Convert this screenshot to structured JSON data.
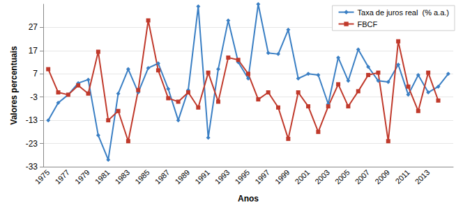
{
  "chart_data": {
    "type": "line",
    "x_label": "Anos",
    "y_label": "Valores percentuais",
    "categories": [
      "1975",
      null,
      "1977",
      null,
      "1979",
      null,
      "1981",
      null,
      "1983",
      null,
      "1985",
      null,
      "1987",
      null,
      "1989",
      null,
      "1991",
      null,
      "1993",
      null,
      "1995",
      null,
      "1997",
      null,
      "1999",
      null,
      "2001",
      null,
      "2003",
      null,
      "2005",
      null,
      "2007",
      null,
      "2009",
      null,
      "2011",
      null,
      "2013",
      null,
      null
    ],
    "series": [
      {
        "name": "Taxa de juros real  (% a.a.)",
        "color": "#3a7fc4",
        "marker": "diamond",
        "values": [
          -13,
          -5.5,
          -2,
          3,
          4.5,
          -19.5,
          -30,
          -1.5,
          9,
          -1,
          9.5,
          11.5,
          0.5,
          -13,
          0,
          36,
          -20.5,
          9,
          30,
          12,
          5,
          37,
          16,
          15.5,
          26,
          5,
          7,
          6.5,
          -6,
          14,
          4,
          17.5,
          10,
          4,
          3.5,
          11,
          -2,
          6.5,
          -1,
          1.5,
          7
        ]
      },
      {
        "name": "FBCF",
        "color": "#c0392b",
        "marker": "square",
        "values": [
          9,
          -1,
          -2,
          2,
          -1.5,
          16.5,
          -13,
          -9,
          -22,
          0,
          30,
          8.5,
          -3.5,
          -5,
          -1,
          -7.5,
          7.5,
          -5,
          14,
          13,
          7,
          -4,
          -1,
          -7.5,
          -21,
          -1,
          -7,
          -18,
          -7,
          2.5,
          -7,
          -0.5,
          6.5,
          7.5,
          -22,
          21,
          1.5,
          -9,
          7.5,
          -4.5,
          null
        ]
      }
    ],
    "ylim": [
      -33,
      37
    ],
    "yticks": [
      -33,
      -23,
      -13,
      -3,
      7,
      17,
      27
    ],
    "grid": true,
    "legend": "upper right"
  }
}
